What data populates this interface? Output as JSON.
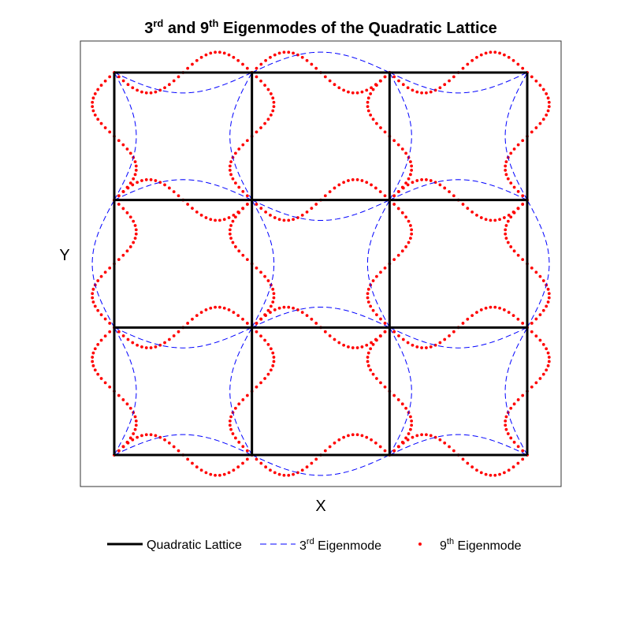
{
  "chart_data": {
    "type": "line",
    "title": {
      "part1_base": "3",
      "part1_sup": "rd",
      "part2_base": " and 9",
      "part2_sup": "th",
      "part3": " Eigenmodes of the Quadratic Lattice"
    },
    "xlabel": "X",
    "ylabel": "Y",
    "grid": false,
    "axis_ticks": false,
    "xlim": [
      -0.25,
      3.25
    ],
    "ylim": [
      -0.25,
      3.25
    ],
    "lattice": {
      "nodes": [
        0,
        1,
        2,
        3
      ],
      "color": "#000000"
    },
    "modes": {
      "third": {
        "mode": [
          1,
          1
        ],
        "amplitude": 0.16,
        "color": "#0000ff"
      },
      "ninth": {
        "mode": [
          2,
          2
        ],
        "amplitude": 0.16,
        "color": "#ff0000"
      }
    },
    "legend": {
      "placement": "bottom",
      "entries": [
        {
          "label": "Quadratic Lattice",
          "style": "solid"
        },
        {
          "base": "3",
          "sup": "rd",
          "rest": " Eigenmode",
          "style": "dashed"
        },
        {
          "base": "9",
          "sup": "th",
          "rest": " Eigenmode",
          "style": "dotted"
        }
      ]
    }
  }
}
